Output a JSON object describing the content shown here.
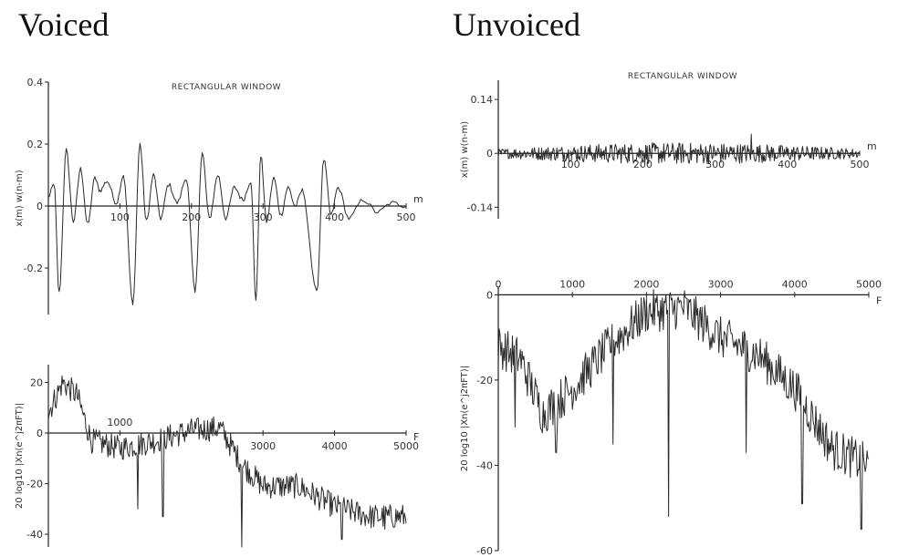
{
  "headings": {
    "voiced": "Voiced",
    "unvoiced": "Unvoiced"
  },
  "chart_data": [
    {
      "id": "voiced-waveform",
      "type": "line",
      "title": "RECTANGULAR WINDOW",
      "xlabel": "m",
      "ylabel": "x(m) w(n-m)",
      "xlim": [
        0,
        500
      ],
      "ylim": [
        -0.35,
        0.4
      ],
      "x_ticks": [
        100,
        200,
        300,
        400,
        500
      ],
      "x_tick_labels": [
        "100",
        "200",
        "300",
        "400",
        "500"
      ],
      "y_ticks": [
        0.4,
        0.2,
        0,
        -0.2
      ],
      "y_tick_labels": [
        "0.4",
        "0.2",
        "0",
        "-0.2"
      ],
      "grid": false,
      "peaks": [
        {
          "x": 0,
          "y": 0.03
        },
        {
          "x": 8,
          "y": 0.07
        },
        {
          "x": 15,
          "y": -0.28
        },
        {
          "x": 25,
          "y": 0.18
        },
        {
          "x": 35,
          "y": -0.05
        },
        {
          "x": 45,
          "y": 0.12
        },
        {
          "x": 55,
          "y": -0.06
        },
        {
          "x": 65,
          "y": 0.09
        },
        {
          "x": 72,
          "y": 0.05
        },
        {
          "x": 82,
          "y": 0.08
        },
        {
          "x": 95,
          "y": 0.01
        },
        {
          "x": 105,
          "y": 0.1
        },
        {
          "x": 118,
          "y": -0.32
        },
        {
          "x": 128,
          "y": 0.2
        },
        {
          "x": 137,
          "y": -0.05
        },
        {
          "x": 147,
          "y": 0.1
        },
        {
          "x": 157,
          "y": -0.04
        },
        {
          "x": 168,
          "y": 0.07
        },
        {
          "x": 180,
          "y": 0.01
        },
        {
          "x": 193,
          "y": 0.09
        },
        {
          "x": 205,
          "y": -0.28
        },
        {
          "x": 215,
          "y": 0.17
        },
        {
          "x": 225,
          "y": -0.04
        },
        {
          "x": 237,
          "y": 0.1
        },
        {
          "x": 248,
          "y": -0.04
        },
        {
          "x": 260,
          "y": 0.06
        },
        {
          "x": 272,
          "y": 0.02
        },
        {
          "x": 283,
          "y": 0.08
        },
        {
          "x": 290,
          "y": -0.3
        },
        {
          "x": 297,
          "y": 0.16
        },
        {
          "x": 305,
          "y": -0.05
        },
        {
          "x": 315,
          "y": 0.09
        },
        {
          "x": 325,
          "y": -0.03
        },
        {
          "x": 335,
          "y": 0.06
        },
        {
          "x": 345,
          "y": 0.0
        },
        {
          "x": 355,
          "y": 0.05
        },
        {
          "x": 375,
          "y": -0.28
        },
        {
          "x": 385,
          "y": 0.15
        },
        {
          "x": 395,
          "y": -0.03
        },
        {
          "x": 405,
          "y": 0.06
        },
        {
          "x": 420,
          "y": -0.04
        },
        {
          "x": 440,
          "y": 0.02
        },
        {
          "x": 460,
          "y": -0.02
        },
        {
          "x": 480,
          "y": 0.01
        },
        {
          "x": 500,
          "y": 0.0
        }
      ]
    },
    {
      "id": "voiced-spectrum",
      "type": "line",
      "title": "",
      "xlabel": "F",
      "ylabel": "20 log10 |Xn(e^j2πFT)|",
      "xlim": [
        0,
        5000
      ],
      "ylim": [
        -45,
        27
      ],
      "x_ticks": [
        1000,
        3000,
        4000,
        5000
      ],
      "x_tick_labels": [
        "1000",
        "3000",
        "4000",
        "5000"
      ],
      "y_ticks": [
        20,
        0,
        -20,
        -40
      ],
      "y_tick_labels": [
        "20",
        "0",
        "-20",
        "-40"
      ],
      "grid": false,
      "envelope": [
        {
          "x": 0,
          "y": 8
        },
        {
          "x": 200,
          "y": 20
        },
        {
          "x": 400,
          "y": 15
        },
        {
          "x": 600,
          "y": -3
        },
        {
          "x": 1000,
          "y": -6
        },
        {
          "x": 1500,
          "y": -3
        },
        {
          "x": 2000,
          "y": 1
        },
        {
          "x": 2400,
          "y": 2
        },
        {
          "x": 2700,
          "y": -12
        },
        {
          "x": 3000,
          "y": -21
        },
        {
          "x": 3500,
          "y": -21
        },
        {
          "x": 4000,
          "y": -29
        },
        {
          "x": 4500,
          "y": -33
        },
        {
          "x": 5000,
          "y": -33
        }
      ],
      "dips": [
        {
          "x": 1250,
          "y": -30
        },
        {
          "x": 1600,
          "y": -33
        },
        {
          "x": 2700,
          "y": -45
        },
        {
          "x": 4100,
          "y": -42
        },
        {
          "x": 4700,
          "y": -38
        }
      ]
    },
    {
      "id": "unvoiced-waveform",
      "type": "line",
      "title": "RECTANGULAR WINDOW",
      "xlabel": "m",
      "ylabel": "x(m) w(n-m)",
      "xlim": [
        0,
        500
      ],
      "ylim": [
        -0.17,
        0.19
      ],
      "x_ticks": [
        100,
        200,
        300,
        400,
        500
      ],
      "x_tick_labels": [
        "100",
        "200",
        "300",
        "400",
        "500"
      ],
      "y_ticks": [
        0.14,
        0,
        -0.14
      ],
      "y_tick_labels": [
        "0.14",
        "0",
        "-0.14"
      ],
      "grid": false,
      "noise_amplitude": 0.02,
      "peak": {
        "x": 350,
        "y": 0.05
      }
    },
    {
      "id": "unvoiced-spectrum",
      "type": "line",
      "title": "",
      "xlabel": "F",
      "ylabel": "20 log10 |Xn(e^j2πFT)|",
      "xlim": [
        0,
        5000
      ],
      "ylim": [
        -60,
        2
      ],
      "x_axis_position": "top",
      "x_ticks": [
        0,
        1000,
        2000,
        3000,
        4000,
        5000
      ],
      "x_tick_labels": [
        "0",
        "1000",
        "2000",
        "3000",
        "4000",
        "5000"
      ],
      "y_ticks": [
        0,
        -20,
        -40,
        -60
      ],
      "y_tick_labels": [
        "0",
        "-20",
        "-40",
        "-60"
      ],
      "grid": false,
      "envelope": [
        {
          "x": 0,
          "y": -12
        },
        {
          "x": 300,
          "y": -15
        },
        {
          "x": 600,
          "y": -28
        },
        {
          "x": 1000,
          "y": -22
        },
        {
          "x": 1500,
          "y": -12
        },
        {
          "x": 2000,
          "y": -4
        },
        {
          "x": 2500,
          "y": -3
        },
        {
          "x": 3000,
          "y": -10
        },
        {
          "x": 3500,
          "y": -14
        },
        {
          "x": 4000,
          "y": -22
        },
        {
          "x": 4500,
          "y": -36
        },
        {
          "x": 5000,
          "y": -40
        }
      ],
      "dips": [
        {
          "x": 230,
          "y": -31
        },
        {
          "x": 780,
          "y": -37
        },
        {
          "x": 1550,
          "y": -35
        },
        {
          "x": 2300,
          "y": -52
        },
        {
          "x": 3350,
          "y": -37
        },
        {
          "x": 4100,
          "y": -49
        },
        {
          "x": 4900,
          "y": -55
        }
      ]
    }
  ]
}
